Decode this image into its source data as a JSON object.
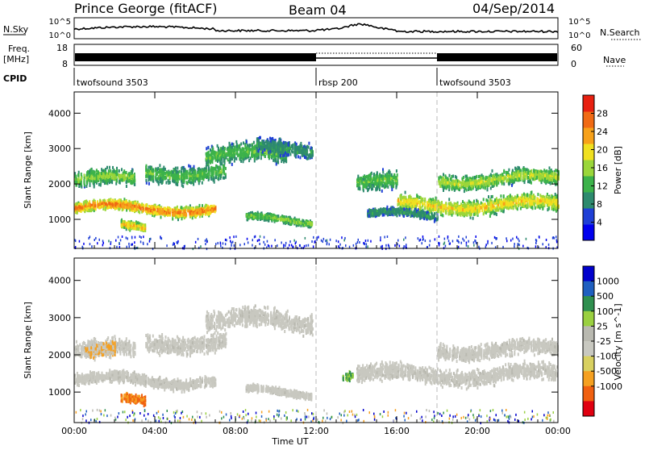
{
  "header": {
    "station": "Prince George (fitACF)",
    "beam": "Beam 04",
    "date": "04/Sep/2014"
  },
  "noise_panel": {
    "left_label": "N.Sky",
    "left_ticks": [
      "10^5",
      "10^0"
    ],
    "right_ticks": [
      "10^5",
      "10^0"
    ],
    "right_label": "N.Search"
  },
  "freq_panel": {
    "left_label_1": "Freq.",
    "left_label_2": "[MHz]",
    "left_ticks": [
      "18",
      "8"
    ],
    "right_ticks": [
      "60",
      "0"
    ],
    "right_label": "Nave"
  },
  "cpid": {
    "label": "CPID",
    "segments": [
      {
        "name": "twofsound 3503",
        "start_h": 0
      },
      {
        "name": "rbsp 200",
        "start_h": 12
      },
      {
        "name": "twofsound 3503",
        "start_h": 18
      }
    ]
  },
  "colors": {
    "power_scale": [
      "#0000ee",
      "#1f3fd6",
      "#2d8a6e",
      "#3cb24a",
      "#9ad63a",
      "#f0e020",
      "#f7a11a",
      "#f06a14",
      "#e82010"
    ],
    "velocity_scale": [
      "#e00010",
      "#f06010",
      "#f5a020",
      "#d8d060",
      "#c8c8c0",
      "#b9b9b0",
      "#9ad040",
      "#2f8f4f",
      "#1f5fc0",
      "#0000cc"
    ]
  },
  "chart_data": [
    {
      "type": "heatmap",
      "name": "power",
      "ylabel": "Slant Range [km]",
      "yticks": [
        1000,
        2000,
        3000,
        4000
      ],
      "ylim": [
        180,
        4600
      ],
      "xlim": [
        0,
        24
      ],
      "colorbar": {
        "label": "Power [dB]",
        "ticks": [
          4,
          8,
          12,
          16,
          20,
          24,
          28
        ],
        "range": [
          0,
          32
        ]
      },
      "bands": [
        {
          "t0": 0.0,
          "t1": 7.0,
          "r0": 1150,
          "r1": 1550,
          "peak": 28
        },
        {
          "t0": 0.0,
          "t1": 3.0,
          "r0": 1850,
          "r1": 2450,
          "peak": 16
        },
        {
          "t0": 3.5,
          "t1": 7.5,
          "r0": 2050,
          "r1": 2700,
          "peak": 14
        },
        {
          "t0": 6.5,
          "t1": 10.5,
          "r0": 2500,
          "r1": 3200,
          "peak": 14
        },
        {
          "t0": 9.0,
          "t1": 11.8,
          "r0": 2750,
          "r1": 3350,
          "peak": 10
        },
        {
          "t0": 8.5,
          "t1": 11.8,
          "r0": 900,
          "r1": 1150,
          "peak": 16
        },
        {
          "t0": 2.3,
          "t1": 3.5,
          "r0": 650,
          "r1": 950,
          "peak": 24
        },
        {
          "t0": 14.0,
          "t1": 16.0,
          "r0": 1700,
          "r1": 2400,
          "peak": 14
        },
        {
          "t0": 16.0,
          "t1": 24.0,
          "r0": 1150,
          "r1": 1750,
          "peak": 22
        },
        {
          "t0": 18.0,
          "t1": 24.0,
          "r0": 1900,
          "r1": 2450,
          "peak": 18
        },
        {
          "t0": 14.5,
          "t1": 18.0,
          "r0": 1000,
          "r1": 1300,
          "peak": 10
        }
      ]
    },
    {
      "type": "heatmap",
      "name": "velocity",
      "xlabel": "Time UT",
      "ylabel": "Slant Range [km]",
      "yticks": [
        1000,
        2000,
        3000,
        4000
      ],
      "ylim": [
        180,
        4600
      ],
      "xlim": [
        0,
        24
      ],
      "xticks": [
        "00:00",
        "04:00",
        "08:00",
        "12:00",
        "16:00",
        "20:00",
        "00:00"
      ],
      "colorbar": {
        "label": "Velocity [m s^-1]",
        "ticks": [
          1000,
          500,
          100,
          25,
          -25,
          -100,
          -500,
          -1000
        ]
      },
      "bands": [
        {
          "t0": 0.0,
          "t1": 7.0,
          "r0": 1150,
          "r1": 1550,
          "v": -25
        },
        {
          "t0": 0.0,
          "t1": 3.0,
          "r0": 1850,
          "r1": 2450,
          "v": -25
        },
        {
          "t0": 3.5,
          "t1": 7.5,
          "r0": 2050,
          "r1": 2700,
          "v": -25
        },
        {
          "t0": 6.5,
          "t1": 11.8,
          "r0": 2600,
          "r1": 3300,
          "v": -25
        },
        {
          "t0": 8.5,
          "t1": 11.8,
          "r0": 900,
          "r1": 1150,
          "v": -25
        },
        {
          "t0": 2.3,
          "t1": 3.5,
          "r0": 650,
          "r1": 950,
          "v": -500
        },
        {
          "t0": 0.5,
          "t1": 2.0,
          "r0": 1800,
          "r1": 2300,
          "v": -100
        },
        {
          "t0": 14.0,
          "t1": 24.0,
          "r0": 1200,
          "r1": 1800,
          "v": -25
        },
        {
          "t0": 18.0,
          "t1": 24.0,
          "r0": 1900,
          "r1": 2450,
          "v": -25
        },
        {
          "t0": 13.3,
          "t1": 13.8,
          "r0": 1350,
          "r1": 1650,
          "v": 100
        }
      ]
    }
  ]
}
